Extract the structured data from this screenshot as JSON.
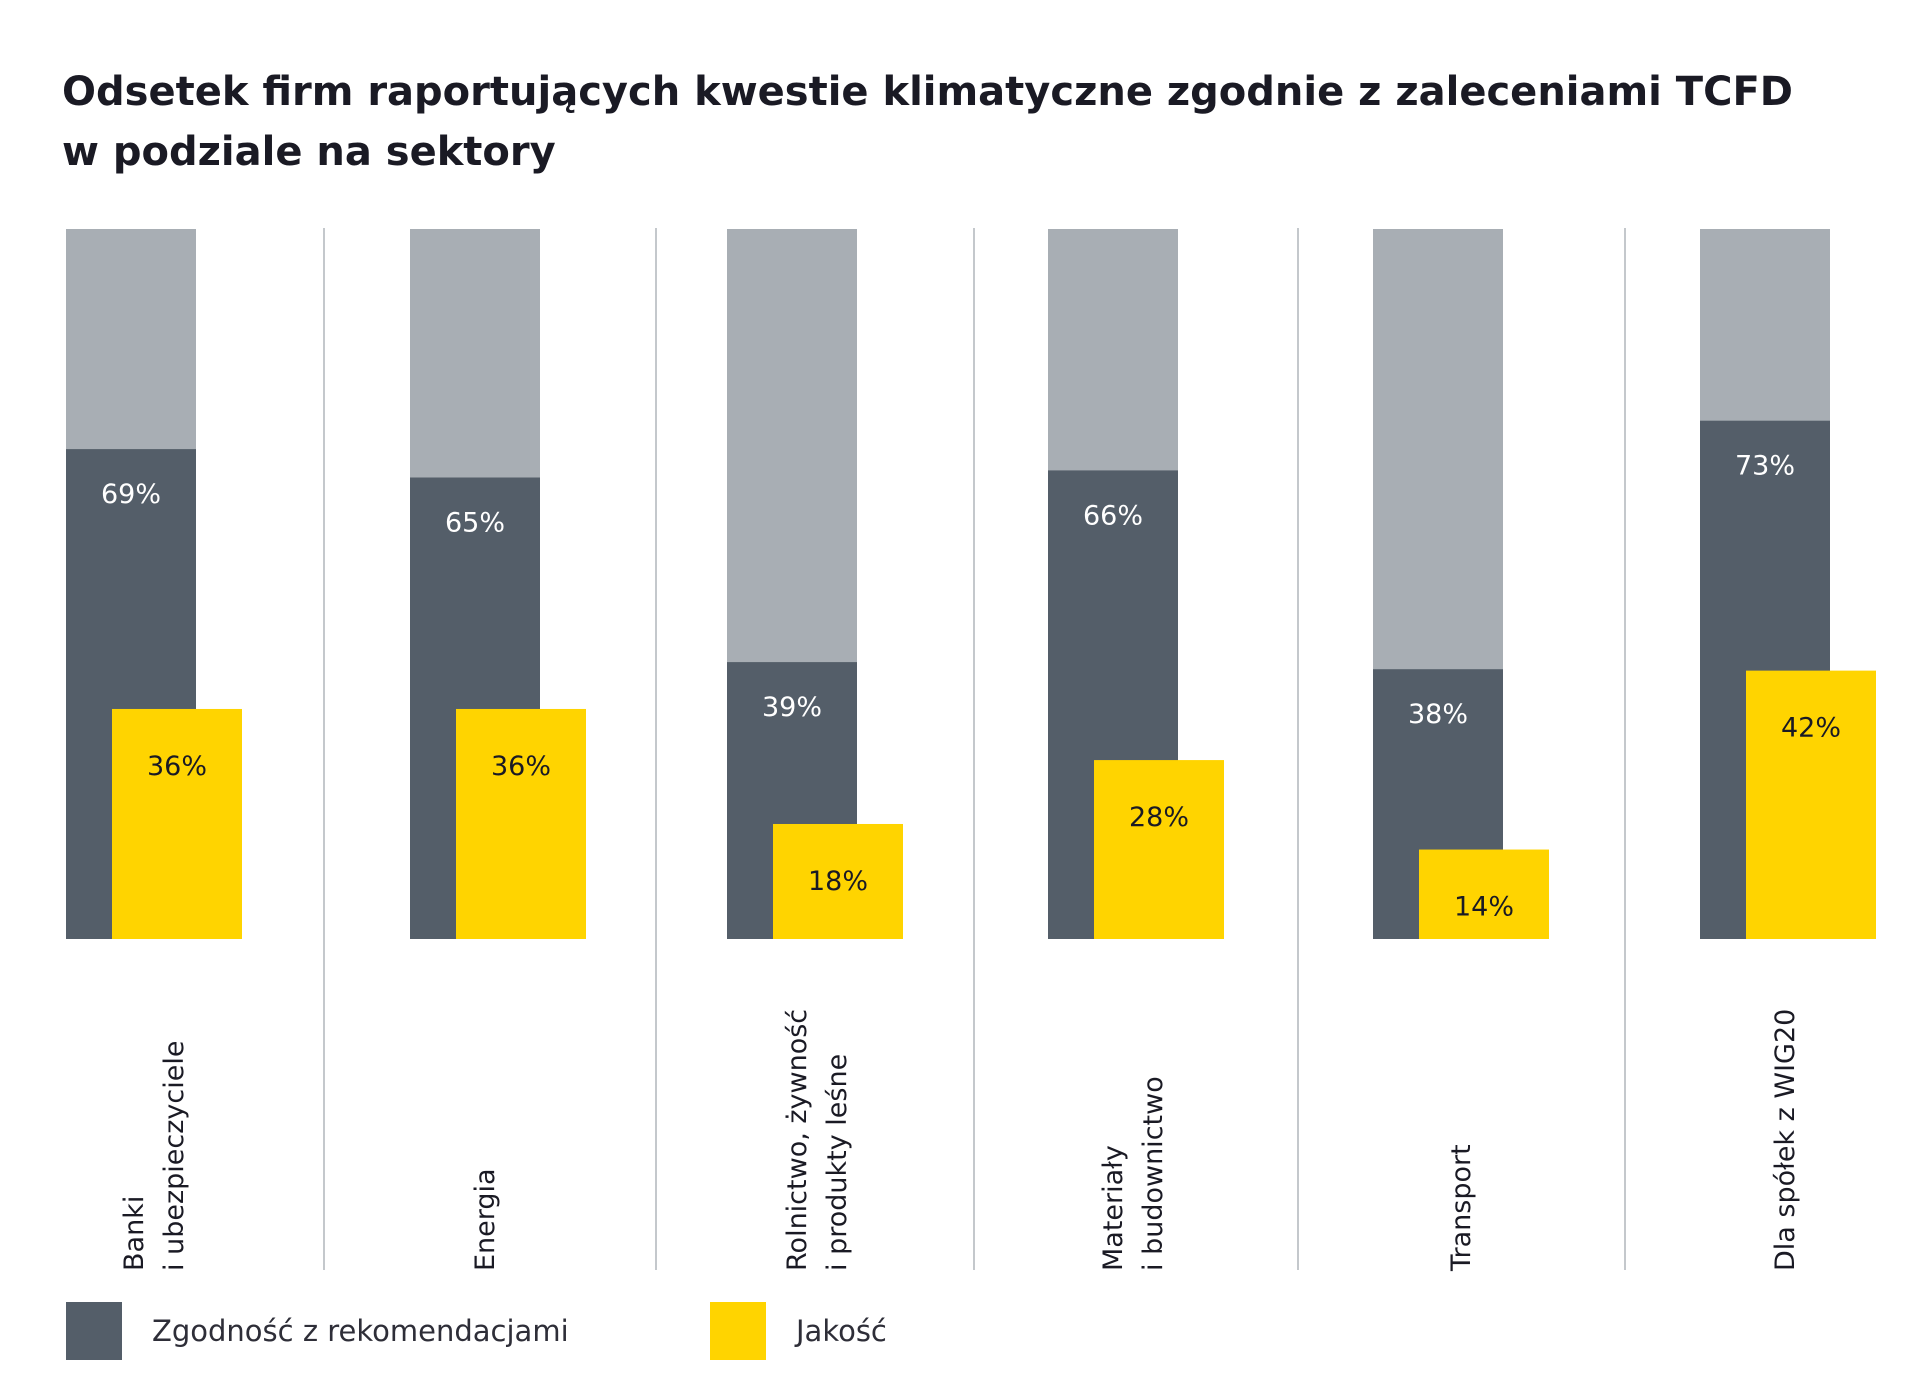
{
  "title_lines": [
    "Odsetek firm raportujących kwestie klimatyczne zgodnie z zaleceniami TCFD",
    "w podziale na sektory"
  ],
  "colors": {
    "background_bar": "#a8aeb4",
    "compliance": "#545e69",
    "quality": "#ffd400",
    "divider": "#c4c8cc",
    "text": "#1a1a24",
    "bar_label_light": "#ffffff",
    "bar_label_dark": "#1a1a24"
  },
  "chart_data": {
    "type": "bar",
    "title": "Odsetek firm raportujących kwestie klimatyczne zgodnie z zaleceniami TCFD w podziale na sektory",
    "ylim": [
      0,
      100
    ],
    "grid": false,
    "legend_position": "bottom-left",
    "categories": [
      {
        "name": "Banki i ubezpieczyciele",
        "lines": [
          "Banki",
          "i ubezpieczyciele"
        ]
      },
      {
        "name": "Energia",
        "lines": [
          "Energia"
        ]
      },
      {
        "name": "Rolnictwo, żywność i produkty leśne",
        "lines": [
          "Rolnictwo, żywność",
          "i produkty leśne"
        ]
      },
      {
        "name": "Materiały i budownictwo",
        "lines": [
          "Materiały",
          "i budownictwo"
        ]
      },
      {
        "name": "Transport",
        "lines": [
          "Transport"
        ]
      },
      {
        "name": "Dla spółek z WIG20",
        "lines": [
          "Dla spółek z WIG20"
        ]
      }
    ],
    "series": [
      {
        "name": "Zgodność z rekomendacjami",
        "values": [
          69,
          65,
          39,
          66,
          38,
          73
        ],
        "labels": [
          "69%",
          "65%",
          "39%",
          "66%",
          "38%",
          "73%"
        ]
      },
      {
        "name": "Jakość",
        "values": [
          36,
          36,
          18,
          28,
          14,
          42
        ],
        "labels": [
          "36%",
          "36%",
          "18%",
          "28%",
          "14%",
          "42%"
        ]
      }
    ]
  }
}
